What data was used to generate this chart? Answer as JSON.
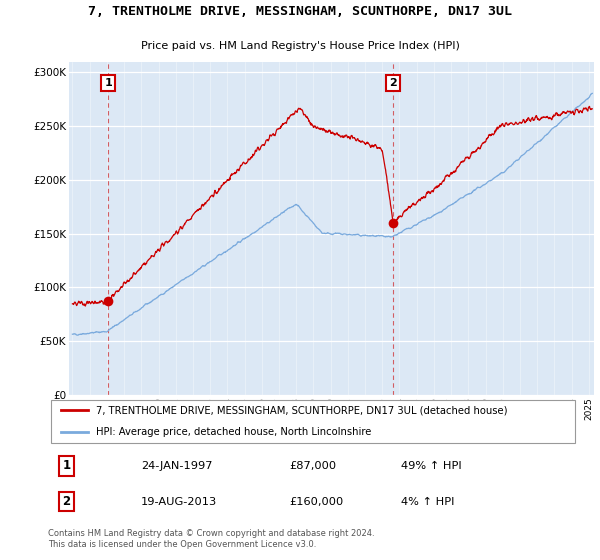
{
  "title": "7, TRENTHOLME DRIVE, MESSINGHAM, SCUNTHORPE, DN17 3UL",
  "subtitle": "Price paid vs. HM Land Registry's House Price Index (HPI)",
  "red_label": "7, TRENTHOLME DRIVE, MESSINGHAM, SCUNTHORPE, DN17 3UL (detached house)",
  "blue_label": "HPI: Average price, detached house, North Lincolnshire",
  "marker1_date": "24-JAN-1997",
  "marker1_price": "£87,000",
  "marker1_hpi": "49% ↑ HPI",
  "marker2_date": "19-AUG-2013",
  "marker2_price": "£160,000",
  "marker2_hpi": "4% ↑ HPI",
  "footer": "Contains HM Land Registry data © Crown copyright and database right 2024.\nThis data is licensed under the Open Government Licence v3.0.",
  "ylim": [
    0,
    310000
  ],
  "yticks": [
    0,
    50000,
    100000,
    150000,
    200000,
    250000,
    300000
  ],
  "ytick_labels": [
    "£0",
    "£50K",
    "£100K",
    "£150K",
    "£200K",
    "£250K",
    "£300K"
  ],
  "bg_color": "#dce8f5",
  "red_color": "#cc0000",
  "blue_color": "#7aaadd",
  "marker1_x": 1997.07,
  "marker2_x": 2013.63,
  "marker1_y": 87000,
  "marker2_y": 160000,
  "xmin": 1994.8,
  "xmax": 2025.3
}
